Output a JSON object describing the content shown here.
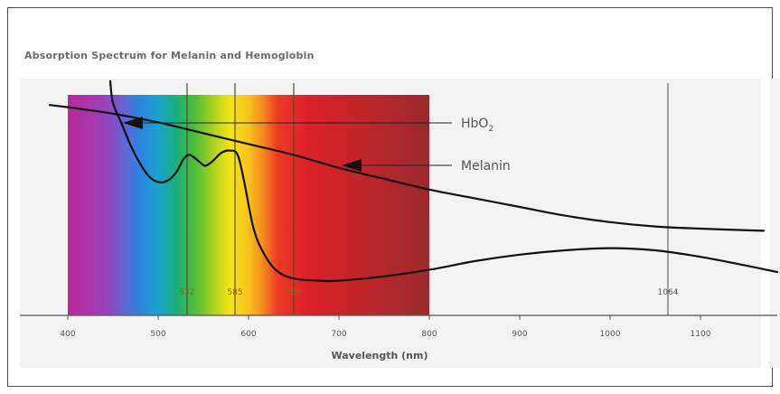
{
  "chart_data": {
    "type": "line",
    "title": "Absorption Spectrum for Melanin and Hemoglobin",
    "xlabel": "Wavelength (nm)",
    "ylabel": "",
    "xlim": [
      380,
      1190
    ],
    "x_ticks": [
      400,
      500,
      600,
      700,
      800,
      900,
      1000,
      1100
    ],
    "x_tick_labels": [
      "400",
      "500",
      "600",
      "700",
      "800",
      "900",
      "1000",
      "1100"
    ],
    "visible_spectrum": {
      "range": [
        400,
        800
      ]
    },
    "reference_lines": [
      {
        "x": 532,
        "label": "532"
      },
      {
        "x": 585,
        "label": "585"
      },
      {
        "x": 650,
        "label": "650"
      },
      {
        "x": 1064,
        "label": "1064"
      }
    ],
    "series": [
      {
        "name": "Melanin",
        "label_parts": {
          "base": "Melanin",
          "sub": ""
        },
        "x": [
          380,
          400,
          450,
          500,
          550,
          600,
          650,
          700,
          750,
          800,
          850,
          900,
          950,
          1000,
          1050,
          1100,
          1170
        ],
        "y": [
          0.97,
          0.96,
          0.93,
          0.89,
          0.84,
          0.79,
          0.74,
          0.68,
          0.63,
          0.58,
          0.54,
          0.5,
          0.46,
          0.43,
          0.41,
          0.4,
          0.39
        ]
      },
      {
        "name": "HbO2",
        "label_parts": {
          "base": "HbO",
          "sub": "2"
        },
        "x": [
          447,
          450,
          460,
          470,
          480,
          490,
          500,
          510,
          520,
          528,
          535,
          545,
          552,
          560,
          570,
          580,
          588,
          595,
          605,
          615,
          630,
          650,
          680,
          700,
          750,
          800,
          850,
          900,
          950,
          1000,
          1050,
          1100,
          1150,
          1185
        ],
        "y": [
          1.08,
          0.98,
          0.88,
          0.78,
          0.7,
          0.64,
          0.615,
          0.62,
          0.66,
          0.72,
          0.74,
          0.71,
          0.69,
          0.71,
          0.75,
          0.76,
          0.74,
          0.62,
          0.41,
          0.3,
          0.21,
          0.17,
          0.16,
          0.16,
          0.18,
          0.21,
          0.25,
          0.28,
          0.3,
          0.31,
          0.3,
          0.27,
          0.23,
          0.2
        ]
      }
    ],
    "grid": false,
    "legend": "inline labels at right"
  }
}
